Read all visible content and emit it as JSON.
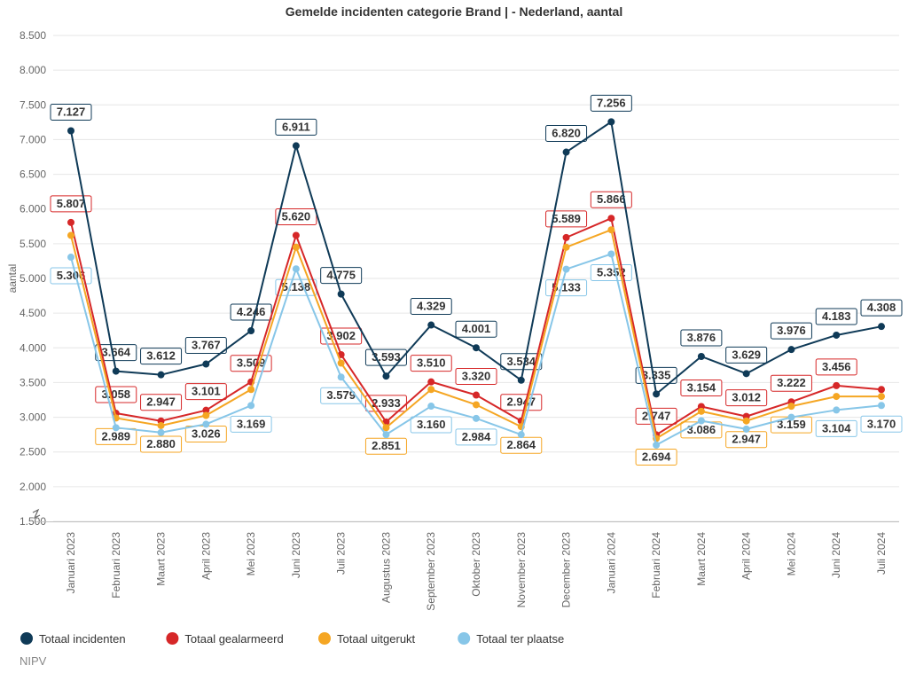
{
  "chart": {
    "type": "line",
    "title": "Gemelde incidenten categorie Brand | - Nederland, aantal",
    "title_fontsize": 14,
    "ylabel": "aantal",
    "ylabel_fontsize": 12,
    "footer": "NIPV",
    "background_color": "#ffffff",
    "grid_color": "#e6e6e6",
    "axis_text_color": "#666666",
    "ylim": [
      1500,
      8500
    ],
    "ytick_step": 500,
    "ytick_labels": [
      "1.500",
      "2.000",
      "2.500",
      "3.000",
      "3.500",
      "4.000",
      "4.500",
      "5.000",
      "5.500",
      "6.000",
      "6.500",
      "7.000",
      "7.500",
      "8.000",
      "8.500"
    ],
    "categories": [
      "Januari 2023",
      "Februari 2023",
      "Maart 2023",
      "April 2023",
      "Mei 2023",
      "Juni 2023",
      "Juli 2023",
      "Augustus 2023",
      "September 2023",
      "Oktober 2023",
      "November 2023",
      "December 2023",
      "Januari 2024",
      "Februari 2024",
      "Maart 2024",
      "April 2024",
      "Mei 2024",
      "Juni 2024",
      "Juli 2024"
    ],
    "series": [
      {
        "name": "Totaal incidenten",
        "color": "#0f3a57",
        "values": [
          7127,
          3664,
          3612,
          3767,
          4246,
          6911,
          4775,
          3593,
          4329,
          4001,
          3534,
          6820,
          7256,
          3335,
          3876,
          3629,
          3976,
          4183,
          4308
        ],
        "labels": [
          "7.127",
          "3.664",
          "3.612",
          "3.767",
          "4.246",
          "6.911",
          "4.775",
          "3.593",
          "4.329",
          "4.001",
          "3.534",
          "6.820",
          "7.256",
          "3.335",
          "3.876",
          "3.629",
          "3.976",
          "4.183",
          "4.308"
        ],
        "label_side": [
          "above",
          "above",
          "above",
          "above",
          "above",
          "above",
          "above",
          "above",
          "above",
          "above",
          "above",
          "above",
          "above",
          "above",
          "above",
          "above",
          "above",
          "above",
          "above"
        ]
      },
      {
        "name": "Totaal gealarmeerd",
        "color": "#d62728",
        "values": [
          5807,
          3058,
          2947,
          3101,
          3509,
          5620,
          3902,
          2933,
          3510,
          3320,
          2947,
          5589,
          5866,
          2747,
          3154,
          3012,
          3222,
          3456,
          3400
        ],
        "labels": [
          "5.807",
          "3.058",
          "2.947",
          "3.101",
          "3.509",
          "5.620",
          "3.902",
          "2.933",
          "3.510",
          "3.320",
          "2.947",
          "5.589",
          "5.866",
          "2.747",
          "3.154",
          "3.012",
          "3.222",
          "3.456",
          ""
        ],
        "label_side": [
          "above",
          "above",
          "above",
          "above",
          "above",
          "above",
          "above",
          "above",
          "above",
          "above",
          "above",
          "above",
          "above",
          "above",
          "above",
          "above",
          "above",
          "above",
          "above"
        ]
      },
      {
        "name": "Totaal uitgerukt",
        "color": "#f5a623",
        "values": [
          5620,
          2989,
          2880,
          3026,
          3400,
          5450,
          3780,
          2851,
          3400,
          3180,
          2864,
          5450,
          5700,
          2694,
          3086,
          2947,
          3159,
          3300,
          3300
        ],
        "labels": [
          "",
          "2.989",
          "2.880",
          "3.026",
          "",
          "",
          "",
          "2.851",
          "",
          "",
          "2.864",
          "",
          "",
          "2.694",
          "3.086",
          "2.947",
          "3.159",
          "",
          ""
        ],
        "label_side": [
          "below",
          "below",
          "below",
          "below",
          "below",
          "below",
          "below",
          "below",
          "below",
          "below",
          "below",
          "below",
          "below",
          "below",
          "below",
          "below",
          "below",
          "below",
          "below"
        ]
      },
      {
        "name": "Totaal ter plaatse",
        "color": "#87c6e8",
        "values": [
          5306,
          2850,
          2780,
          2900,
          3169,
          5138,
          3579,
          2750,
          3160,
          2984,
          2750,
          5133,
          5352,
          2600,
          2950,
          2830,
          3000,
          3104,
          3170
        ],
        "labels": [
          "5.306",
          "",
          "",
          "",
          "3.169",
          "5.138",
          "3.579",
          "",
          "3.160",
          "2.984",
          "",
          "5.133",
          "5.352",
          "",
          "",
          "",
          "",
          "3.104",
          "3.170"
        ],
        "label_side": [
          "below",
          "below",
          "below",
          "below",
          "below",
          "below",
          "below",
          "below",
          "below",
          "below",
          "below",
          "below",
          "below",
          "below",
          "below",
          "below",
          "below",
          "below",
          "below"
        ]
      }
    ],
    "legend": {
      "position": "bottom-left",
      "marker_shape": "circle",
      "marker_size": 7,
      "fontsize": 13
    },
    "line_width": 2,
    "marker_radius": 4,
    "data_label_fontsize": 13,
    "data_label_box_stroke_width": 1
  }
}
